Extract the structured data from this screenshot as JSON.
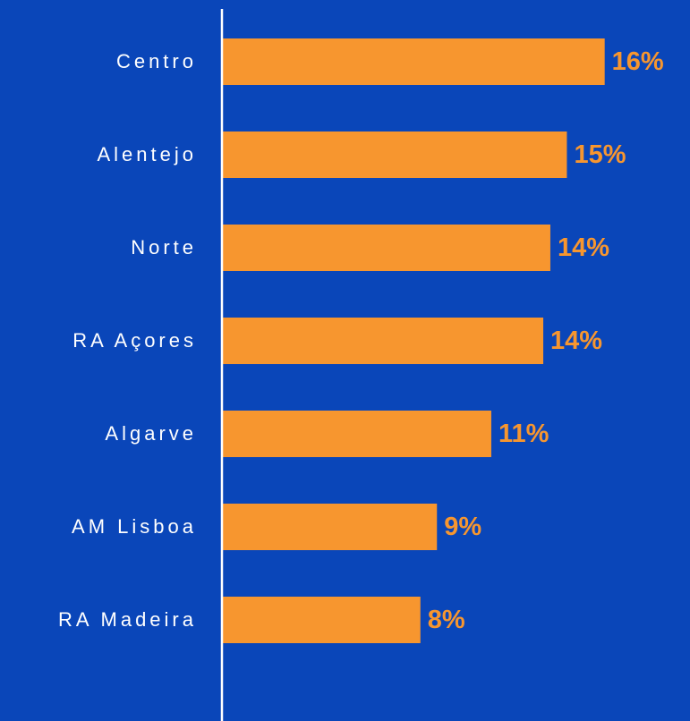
{
  "chart_data": {
    "type": "bar",
    "orientation": "horizontal",
    "categories": [
      "Centro",
      "Alentejo",
      "Norte",
      "RA Açores",
      "Algarve",
      "AM Lisboa",
      "RA Madeira"
    ],
    "values": [
      16.2,
      14.6,
      13.9,
      13.6,
      11.4,
      9.1,
      8.4
    ],
    "value_labels": [
      "16%",
      "15%",
      "14%",
      "14%",
      "11%",
      "9%",
      "8%"
    ],
    "color": "#f7962f",
    "xlim": [
      0,
      19
    ]
  }
}
